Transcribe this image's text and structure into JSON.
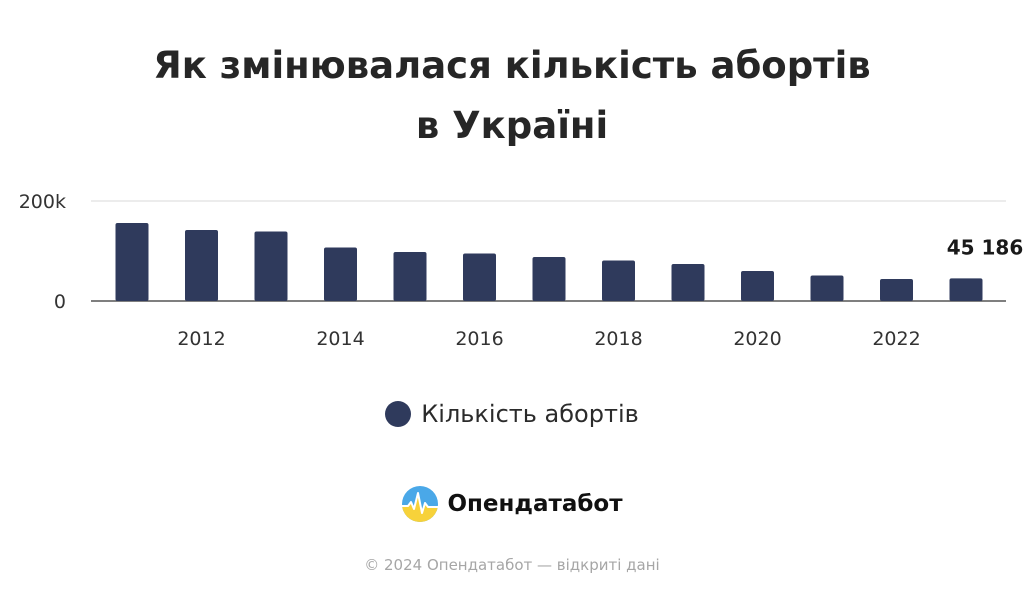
{
  "title": {
    "line1": "Як змінювалася кількість абортів",
    "line2": "в Україні"
  },
  "colors": {
    "bar": "#2f3a5c",
    "grid": "#e6e6e6",
    "axis": "#555555"
  },
  "chart_data": {
    "type": "bar",
    "title": "Як змінювалася кількість абортів в Україні",
    "xlabel": "",
    "ylabel": "",
    "categories": [
      "2011",
      "2012",
      "2013",
      "2014",
      "2015",
      "2016",
      "2017",
      "2018",
      "2019",
      "2020",
      "2021",
      "2022",
      "2023"
    ],
    "x_tick_labels": [
      "2012",
      "2014",
      "2016",
      "2018",
      "2020",
      "2022"
    ],
    "y_tick_labels": [
      "0",
      "200k"
    ],
    "ylim": [
      0,
      200000
    ],
    "series": [
      {
        "name": "Кількість абортів",
        "values": [
          156000,
          142000,
          139000,
          107000,
          98000,
          95000,
          88000,
          81000,
          74000,
          60000,
          51000,
          44000,
          45186
        ]
      }
    ],
    "data_labels": [
      {
        "category": "2023",
        "text": "45 186"
      }
    ],
    "legend": {
      "position": "bottom",
      "label": "Кількість абортів"
    },
    "grid": true
  },
  "brand": {
    "name": "Опендатабот",
    "logo_icon": "opendatabot-logo-icon"
  },
  "footer": {
    "text": "© 2024 Опендатабот — відкриті дані"
  }
}
